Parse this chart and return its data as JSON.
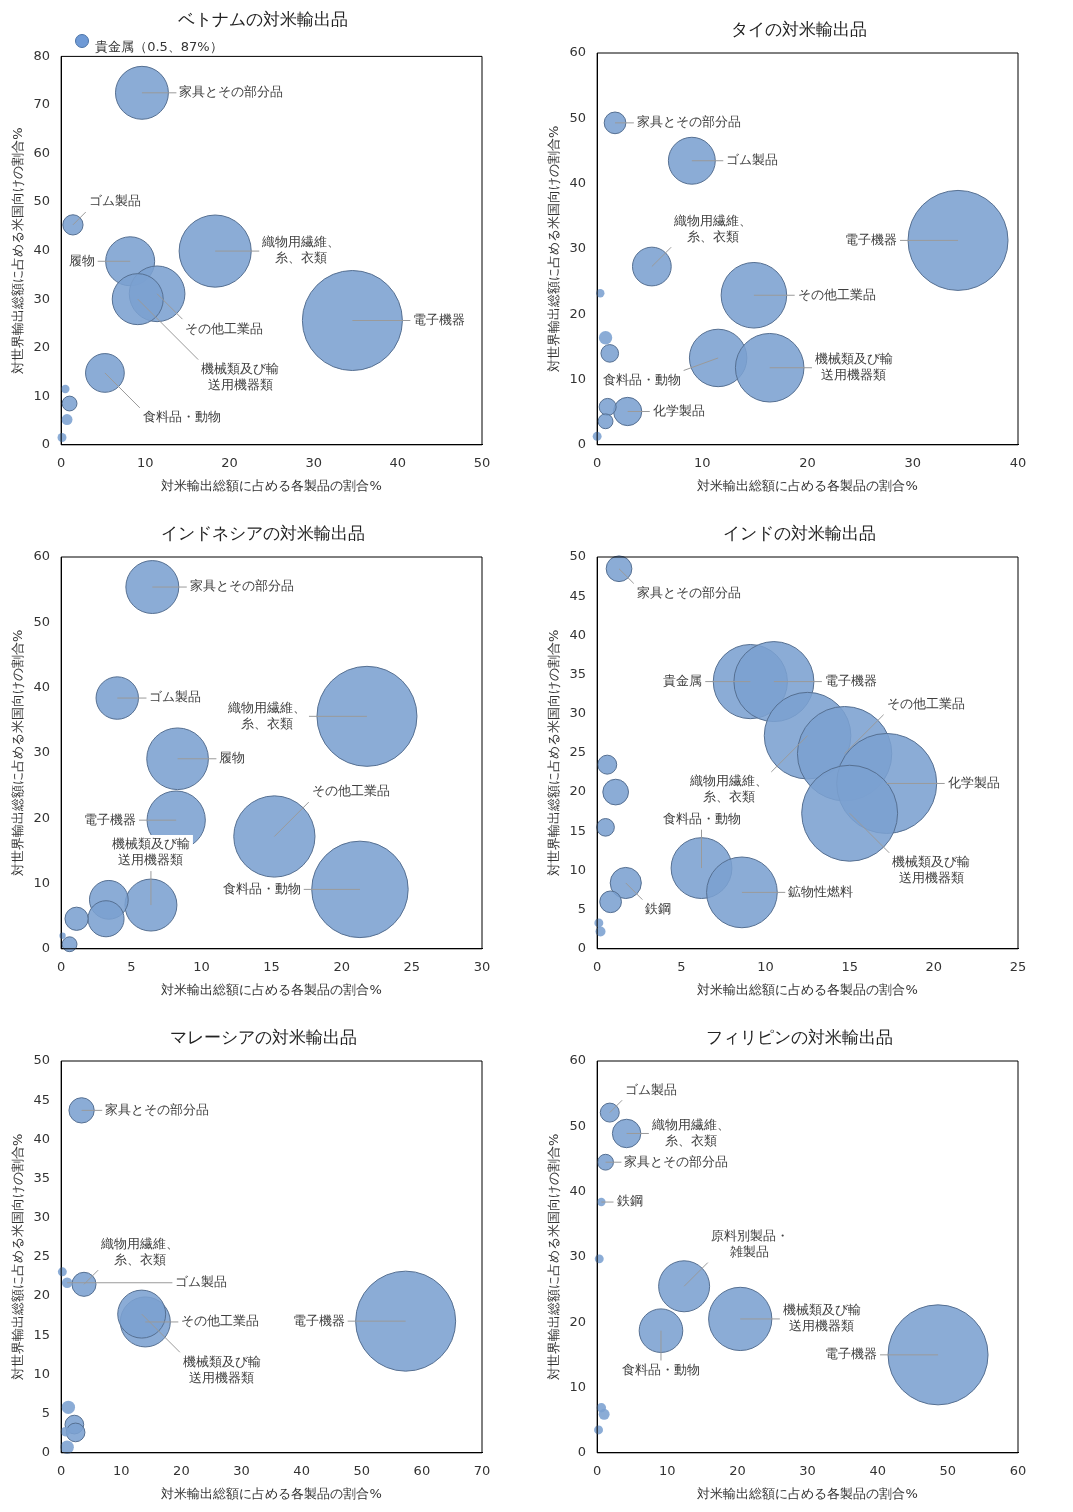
{
  "chart_data": [
    {
      "type": "bubble",
      "title": "ベトナムの対米輸出品",
      "xlabel": "対米輸出総額に占める各製品の割合%",
      "ylabel": "対世界輸出総額に占める米国向けの割合%",
      "color": "#7ba0d0",
      "x": [
        9.6,
        1.4,
        8.2,
        18.3,
        11.4,
        9.1,
        34.6,
        5.2,
        0.5,
        1.0,
        0.7,
        0.1
      ],
      "values": [
        72.5,
        45.3,
        37.8,
        39.9,
        31.1,
        30,
        25.6,
        14.8,
        11.5,
        8.5,
        5.2,
        1.5
      ],
      "sizes": [
        0.28,
        0.041,
        0.24,
        0.52,
        0.31,
        0.26,
        1,
        0.15,
        0.007,
        0.022,
        0.012,
        0.008
      ],
      "xlim": [
        0,
        50
      ],
      "ylim": [
        0,
        80
      ],
      "xticks": [
        0,
        10,
        20,
        30,
        40,
        50
      ],
      "yticks": [
        0,
        10,
        20,
        30,
        40,
        50,
        60,
        70,
        80
      ],
      "annotations": [
        "貴金属（0.5、87%）",
        {
          "text": "家具とその部分品",
          "x": 9.6,
          "y": 72.5
        },
        {
          "text": "ゴム製品",
          "x": 1.4,
          "y": 45.3
        },
        {
          "text": "履物",
          "x": 8.2,
          "y": 37.8
        },
        {
          "text": "織物用繊維、糸、衣類",
          "x": 18.3,
          "y": 39.9
        },
        {
          "text": "その他工業品",
          "x": 11.4,
          "y": 31.1
        },
        {
          "text": "機械類及び輸送用機器類",
          "x": 9.1,
          "y": 30
        },
        {
          "text": "電子機器",
          "x": 34.6,
          "y": 25.6
        },
        {
          "text": "食料品・動物",
          "x": 5.2,
          "y": 14.8
        }
      ]
    },
    {
      "type": "bubble",
      "title": "タイの対米輸出品",
      "xlabel": "対米輸出総額に占める各製品の割合%",
      "ylabel": "対世界輸出総額に占める米国向けの割合%",
      "color": "#7ba0d0",
      "x": [
        1.7,
        9.0,
        5.2,
        14.9,
        11.5,
        16.4,
        34.3,
        2.9,
        0.3,
        0.8,
        1.2,
        1.0,
        0.8,
        0.0
      ],
      "values": [
        49.3,
        43.5,
        27.3,
        22.9,
        13.3,
        11.8,
        31.3,
        5.1,
        23.2,
        16.4,
        14.0,
        5.8,
        3.6,
        1.3
      ],
      "sizes": [
        0.047,
        0.22,
        0.15,
        0.43,
        0.33,
        0.47,
        1,
        0.08,
        0.007,
        0.018,
        0.031,
        0.029,
        0.022,
        0.008
      ],
      "xlim": [
        0,
        40
      ],
      "ylim": [
        0,
        60
      ],
      "xticks": [
        0,
        10,
        20,
        30,
        40
      ],
      "yticks": [
        0,
        10,
        20,
        30,
        40,
        50,
        60
      ],
      "annotations": [
        {
          "text": "家具とその部分品",
          "x": 1.7,
          "y": 49.3
        },
        {
          "text": "ゴム製品",
          "x": 9.0,
          "y": 43.5
        },
        {
          "text": "織物用繊維、糸、衣類",
          "x": 5.2,
          "y": 27.3
        },
        {
          "text": "その他工業品",
          "x": 14.9,
          "y": 22.9
        },
        {
          "text": "食料品・動物",
          "x": 11.5,
          "y": 13.3
        },
        {
          "text": "機械類及び輸送用機器類",
          "x": 16.4,
          "y": 11.8
        },
        {
          "text": "電子機器",
          "x": 34.3,
          "y": 31.3
        },
        {
          "text": "化学製品",
          "x": 2.9,
          "y": 5.1
        }
      ]
    },
    {
      "type": "bubble",
      "title": "インドネシアの対米輸出品",
      "xlabel": "対米輸出総額に占める各製品の割合%",
      "ylabel": "対世界輸出総額に占める米国向けの割合%",
      "color": "#7ba0d0",
      "x": [
        6.5,
        21.8,
        4.0,
        8.3,
        8.2,
        15.2,
        21.3,
        6.4,
        3.4,
        3.2,
        1.1,
        0.6,
        0.1
      ],
      "values": [
        55.4,
        35.6,
        38.4,
        29.1,
        19.7,
        17.2,
        9.1,
        6.7,
        7.5,
        4.6,
        4.6,
        0.7,
        2
      ],
      "sizes": [
        0.28,
        1,
        0.18,
        0.38,
        0.34,
        0.66,
        0.93,
        0.27,
        0.15,
        0.13,
        0.054,
        0.022,
        0.004
      ],
      "xlim": [
        0,
        30
      ],
      "ylim": [
        0,
        60
      ],
      "xticks": [
        0,
        5,
        10,
        15,
        20,
        25,
        30
      ],
      "yticks": [
        0,
        10,
        20,
        30,
        40,
        50,
        60
      ],
      "annotations": [
        {
          "text": "家具とその部分品",
          "x": 6.5,
          "y": 55.4
        },
        {
          "text": "織物用繊維、糸、衣類",
          "x": 21.8,
          "y": 35.6
        },
        {
          "text": "ゴム製品",
          "x": 4.0,
          "y": 38.4
        },
        {
          "text": "履物",
          "x": 8.3,
          "y": 29.1
        },
        {
          "text": "電子機器",
          "x": 8.2,
          "y": 19.7
        },
        {
          "text": "その他工業品",
          "x": 15.2,
          "y": 17.2
        },
        {
          "text": "食料品・動物",
          "x": 21.3,
          "y": 9.1
        },
        {
          "text": "機械類及び輸送用機器類",
          "x": 6.4,
          "y": 6.7
        }
      ]
    },
    {
      "type": "bubble",
      "title": "インドの対米輸出品",
      "xlabel": "対米輸出総額に占める各製品の割合%",
      "ylabel": "対世界輸出総額に占める米国向けの割合%",
      "color": "#7ba0d0",
      "x": [
        1.3,
        9.1,
        10.5,
        12.5,
        14.7,
        17.2,
        15.0,
        6.2,
        8.6,
        1.7,
        0.6,
        1.1,
        0.5,
        0.8,
        0.2,
        0.1
      ],
      "values": [
        48.5,
        34.1,
        34.1,
        27.2,
        24.9,
        21.1,
        17.3,
        10.3,
        7.2,
        8.4,
        23.5,
        20.0,
        15.5,
        6.0,
        2.2,
        3.3
      ],
      "sizes": [
        0.066,
        0.55,
        0.64,
        0.75,
        0.89,
        1,
        0.92,
        0.37,
        0.5,
        0.097,
        0.036,
        0.066,
        0.031,
        0.047,
        0.01,
        0.008
      ],
      "xlim": [
        0,
        25
      ],
      "ylim": [
        0,
        50
      ],
      "xticks": [
        0,
        5,
        10,
        15,
        20,
        25
      ],
      "yticks": [
        0,
        5,
        10,
        15,
        20,
        25,
        30,
        35,
        40,
        45,
        50
      ],
      "annotations": [
        {
          "text": "家具とその部分品",
          "x": 1.3,
          "y": 48.5
        },
        {
          "text": "貴金属",
          "x": 9.1,
          "y": 34.1
        },
        {
          "text": "電子機器",
          "x": 10.5,
          "y": 34.1
        },
        {
          "text": "織物用繊維、糸、衣類",
          "x": 12.5,
          "y": 27.2
        },
        {
          "text": "その他工業品",
          "x": 14.7,
          "y": 24.9
        },
        {
          "text": "化学製品",
          "x": 17.2,
          "y": 21.1
        },
        {
          "text": "機械類及び輸送用機器類",
          "x": 15.0,
          "y": 17.3
        },
        {
          "text": "食料品・動物",
          "x": 6.2,
          "y": 10.3
        },
        {
          "text": "鉱物性燃料",
          "x": 8.6,
          "y": 7.2
        },
        {
          "text": "鉄鋼",
          "x": 1.7,
          "y": 8.4
        }
      ]
    },
    {
      "type": "bubble",
      "title": "マレーシアの対米輸出品",
      "xlabel": "対米輸出総額に占める各製品の割合%",
      "ylabel": "対世界輸出総額に占める米国向けの割合%",
      "color": "#7ba0d0",
      "x": [
        3.4,
        3.8,
        1.0,
        14.0,
        13.4,
        57.3,
        1.2,
        2.2,
        2.4,
        0.7,
        1.0,
        0.2
      ],
      "values": [
        43.7,
        21.5,
        21.7,
        16.7,
        17.7,
        16.8,
        5.8,
        3.6,
        2.6,
        2.7,
        0.7,
        23.1
      ],
      "sizes": [
        0.064,
        0.058,
        0.011,
        0.25,
        0.23,
        1,
        0.018,
        0.035,
        0.035,
        0.009,
        0.018,
        0.008
      ],
      "xlim": [
        0,
        70
      ],
      "ylim": [
        0,
        50
      ],
      "xticks": [
        0,
        10,
        20,
        30,
        40,
        50,
        60,
        70
      ],
      "yticks": [
        0,
        5,
        10,
        15,
        20,
        25,
        30,
        35,
        40,
        45,
        50
      ],
      "annotations": [
        {
          "text": "家具とその部分品",
          "x": 3.4,
          "y": 43.7
        },
        {
          "text": "織物用繊維、糸、衣類",
          "x": 3.8,
          "y": 21.5
        },
        {
          "text": "ゴム製品",
          "x": 1.0,
          "y": 21.7
        },
        {
          "text": "その他工業品",
          "x": 14.0,
          "y": 16.7
        },
        {
          "text": "機械類及び輸送用機器類",
          "x": 13.4,
          "y": 17.7
        },
        {
          "text": "電子機器",
          "x": 57.3,
          "y": 16.8
        }
      ]
    },
    {
      "type": "bubble",
      "title": "フィリピンの対米輸出品",
      "xlabel": "対米輸出総額に占める各製品の割合%",
      "ylabel": "対世界輸出総額に占める米国向けの割合%",
      "color": "#7ba0d0",
      "x": [
        1.8,
        4.2,
        1.2,
        0.6,
        12.4,
        9.1,
        20.4,
        48.6,
        0.3,
        0.6,
        1.0,
        0.2
      ],
      "values": [
        52.1,
        48.9,
        44.5,
        38.4,
        25.5,
        18.7,
        20.5,
        15.0,
        29.7,
        6.9,
        5.9,
        3.5
      ],
      "sizes": [
        0.036,
        0.081,
        0.025,
        0.007,
        0.26,
        0.19,
        0.4,
        1,
        0.008,
        0.009,
        0.012,
        0.008
      ],
      "xlim": [
        0,
        60
      ],
      "ylim": [
        0,
        60
      ],
      "xticks": [
        0,
        10,
        20,
        30,
        40,
        50,
        60
      ],
      "yticks": [
        0,
        10,
        20,
        30,
        40,
        50,
        60
      ],
      "annotations": [
        {
          "text": "ゴム製品",
          "x": 1.8,
          "y": 52.1
        },
        {
          "text": "織物用繊維、糸、衣類",
          "x": 4.2,
          "y": 48.9
        },
        {
          "text": "家具とその部分品",
          "x": 1.2,
          "y": 44.5
        },
        {
          "text": "鉄鋼",
          "x": 0.6,
          "y": 38.4
        },
        {
          "text": "原料別製品・雑製品",
          "x": 12.4,
          "y": 25.5
        },
        {
          "text": "食料品・動物",
          "x": 9.1,
          "y": 18.7
        },
        {
          "text": "機械類及び輸送用機器類",
          "x": 20.4,
          "y": 20.5
        },
        {
          "text": "電子機器",
          "x": 48.6,
          "y": 15.0
        }
      ]
    }
  ]
}
